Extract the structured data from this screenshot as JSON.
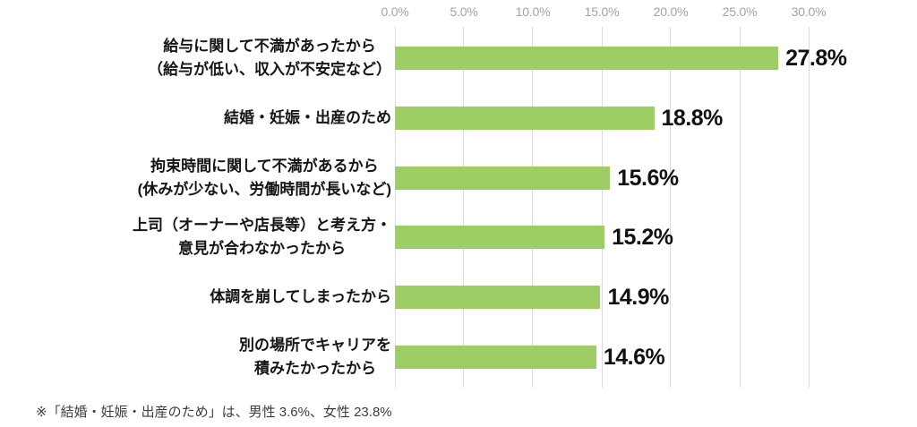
{
  "chart_data": {
    "type": "bar",
    "orientation": "horizontal",
    "title": "",
    "xlabel": "",
    "ylabel": "",
    "xlim": [
      0,
      30
    ],
    "grid": true,
    "axis_position": "top",
    "legend": false,
    "bar_color": "#9dcd64",
    "gridline_color": "#dbdbdb",
    "axis_label_color": "#a3a3a3",
    "x_ticks": [
      "0.0%",
      "5.0%",
      "10.0%",
      "15.0%",
      "20.0%",
      "25.0%",
      "30.0%"
    ],
    "categories": [
      "給与に関して不満があったから\n（給与が低い、収入が不安定など）",
      "結婚・妊娠・出産のため",
      "拘束時間に関して不満があるから\n(休みが少ない、労働時間が長いなど)",
      "上司（オーナーや店長等）と考え方・\n意見が合わなかったから",
      "体調を崩してしまったから",
      "別の場所でキャリアを\n積みたかったから"
    ],
    "values": [
      27.8,
      18.8,
      15.6,
      15.2,
      14.9,
      14.6
    ],
    "value_labels": [
      "27.8%",
      "18.8%",
      "15.6%",
      "15.2%",
      "14.9%",
      "14.6%"
    ]
  },
  "footnote": {
    "text": "※「結婚・妊娠・出産のため」は、男性 3.6%、女性 23.8%"
  }
}
